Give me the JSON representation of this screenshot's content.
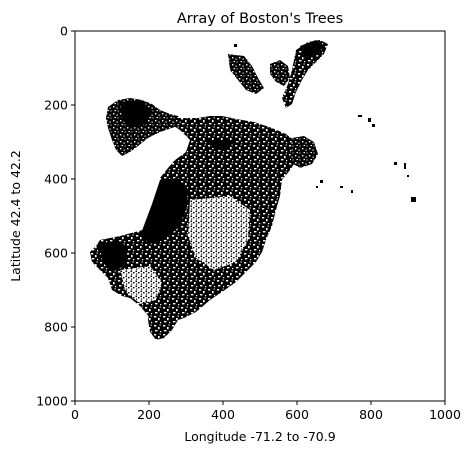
{
  "chart_data": {
    "type": "heatmap",
    "title": "Array of Boston's Trees",
    "xlabel": "Longitude -71.2 to -70.9",
    "ylabel": "Latitude 42.4 to 42.2",
    "xlim": [
      0,
      1000
    ],
    "ylim": [
      1000,
      0
    ],
    "x_ticks": [
      0,
      200,
      400,
      600,
      800,
      1000
    ],
    "y_ticks": [
      0,
      200,
      400,
      600,
      800,
      1000
    ],
    "x_tick_labels": [
      "0",
      "200",
      "400",
      "600",
      "800",
      "1000"
    ],
    "y_tick_labels": [
      "0",
      "200",
      "400",
      "600",
      "800",
      "1000"
    ],
    "colors": {
      "tree": "#000000",
      "background": "#ffffff"
    },
    "grid": false
  }
}
